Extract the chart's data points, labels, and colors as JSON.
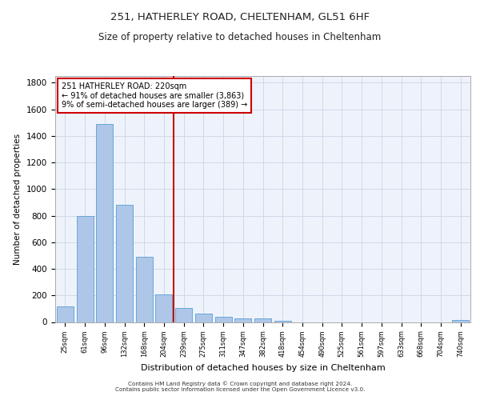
{
  "title1": "251, HATHERLEY ROAD, CHELTENHAM, GL51 6HF",
  "title2": "Size of property relative to detached houses in Cheltenham",
  "xlabel": "Distribution of detached houses by size in Cheltenham",
  "ylabel": "Number of detached properties",
  "categories": [
    "25sqm",
    "61sqm",
    "96sqm",
    "132sqm",
    "168sqm",
    "204sqm",
    "239sqm",
    "275sqm",
    "311sqm",
    "347sqm",
    "382sqm",
    "418sqm",
    "454sqm",
    "490sqm",
    "525sqm",
    "561sqm",
    "597sqm",
    "633sqm",
    "668sqm",
    "704sqm",
    "740sqm"
  ],
  "values": [
    120,
    800,
    1490,
    880,
    490,
    205,
    105,
    65,
    40,
    30,
    25,
    10,
    0,
    0,
    0,
    0,
    0,
    0,
    0,
    0,
    18
  ],
  "bar_color": "#aec6e8",
  "bar_edge_color": "#5a9fd4",
  "grid_color": "#d0d8e8",
  "bg_color": "#eef3fb",
  "vline_x": 5.5,
  "vline_color": "#cc0000",
  "annotation_text": "251 HATHERLEY ROAD: 220sqm\n← 91% of detached houses are smaller (3,863)\n9% of semi-detached houses are larger (389) →",
  "annotation_box_color": "#cc0000",
  "ylim": [
    0,
    1850
  ],
  "yticks": [
    0,
    200,
    400,
    600,
    800,
    1000,
    1200,
    1400,
    1600,
    1800
  ],
  "footer_line1": "Contains HM Land Registry data © Crown copyright and database right 2024.",
  "footer_line2": "Contains public sector information licensed under the Open Government Licence v3.0."
}
